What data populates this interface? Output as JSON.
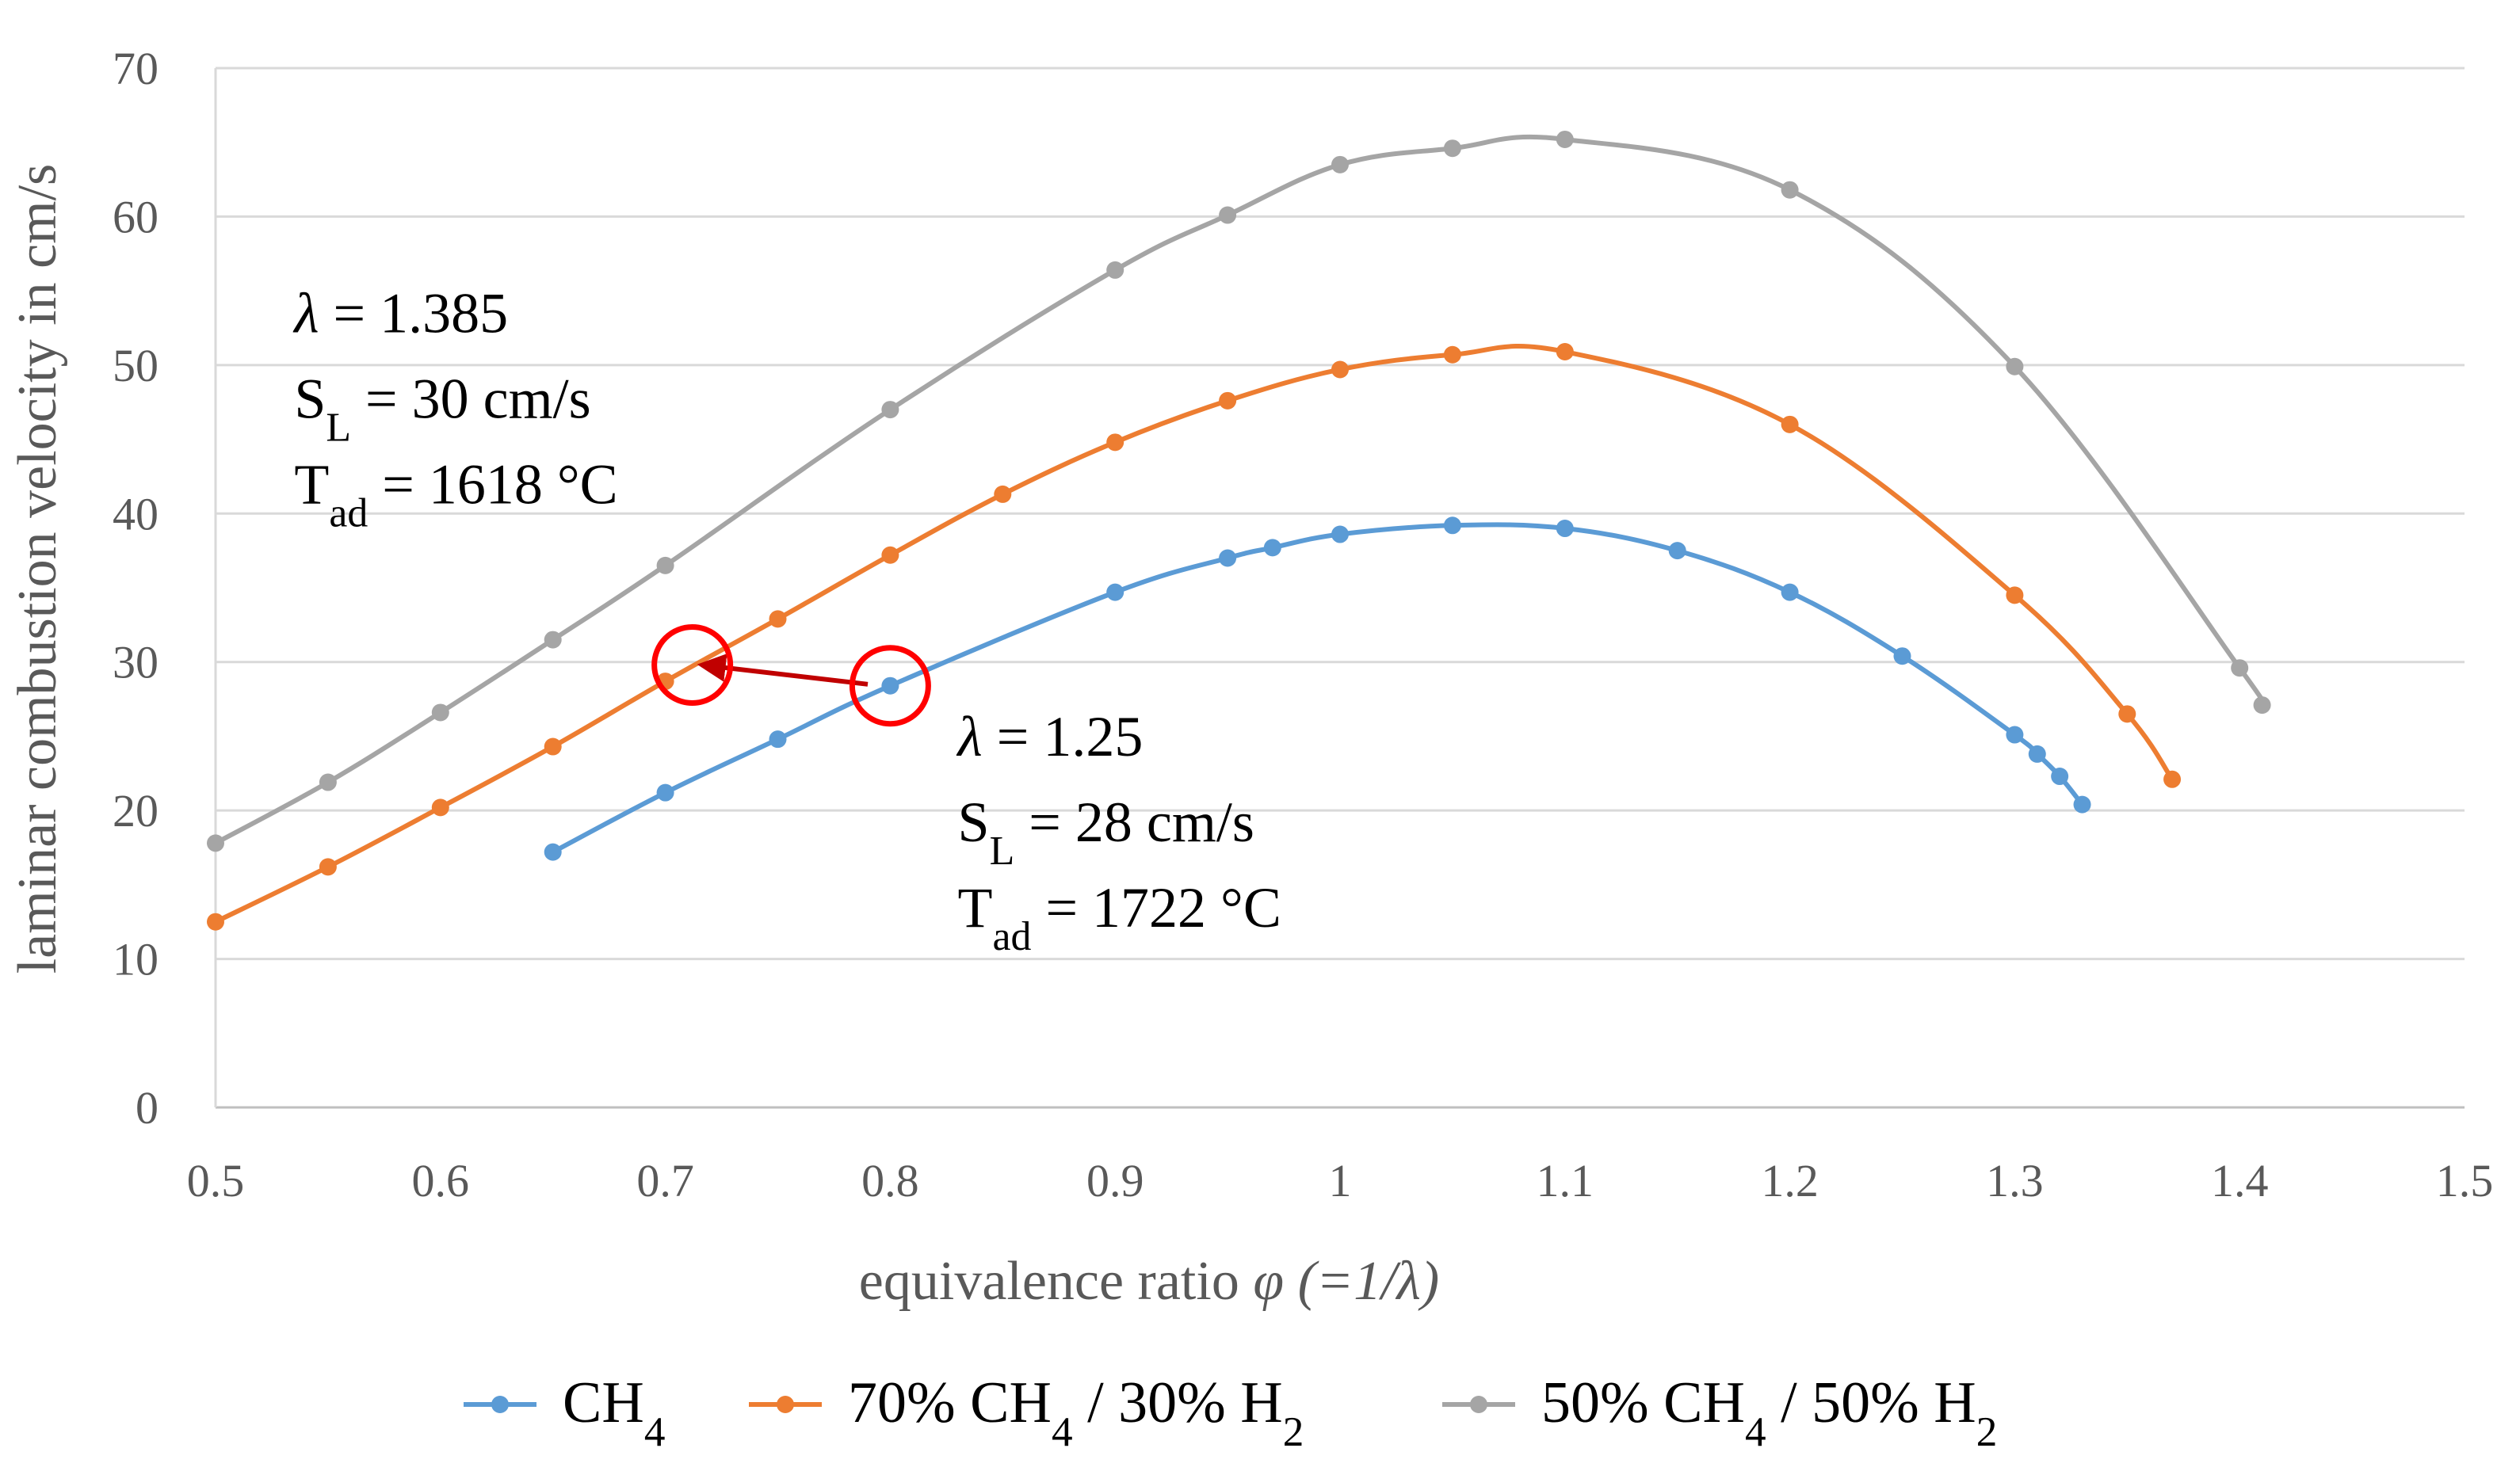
{
  "chart_data": {
    "type": "line",
    "title": "",
    "xlabel": "equivalence ratio φ (=1/λ)",
    "xlabel_main": "equivalence ratio ",
    "xlabel_phi": "φ",
    "xlabel_suffix": " (=1/λ)",
    "ylabel": "laminar combustion velocity  in cm/s",
    "xlim": [
      0.5,
      1.5
    ],
    "ylim": [
      0,
      70
    ],
    "xticks": [
      "0.5",
      "0.6",
      "0.7",
      "0.8",
      "0.9",
      "1",
      "1.1",
      "1.2",
      "1.3",
      "1.4",
      "1.5"
    ],
    "yticks": [
      "0",
      "10",
      "20",
      "30",
      "40",
      "50",
      "60",
      "70"
    ],
    "grid": "horizontal",
    "legend_position": "bottom",
    "series": [
      {
        "name": "CH4",
        "legend_main": "CH",
        "legend_parts": [
          {
            "t": "CH"
          },
          {
            "t": "4",
            "sub": true
          }
        ],
        "color": "#5B9BD5",
        "x": [
          0.65,
          0.7,
          0.75,
          0.8,
          0.9,
          0.95,
          0.97,
          1.0,
          1.05,
          1.1,
          1.15,
          1.2,
          1.25,
          1.3,
          1.31,
          1.32,
          1.33
        ],
        "y": [
          17.2,
          21.2,
          24.8,
          28.4,
          34.7,
          37.0,
          37.7,
          38.6,
          39.2,
          39.0,
          37.5,
          34.7,
          30.4,
          25.1,
          23.8,
          22.3,
          20.4
        ]
      },
      {
        "name": "70% CH4 / 30% H2",
        "legend_main": "70% CH",
        "legend_parts": [
          {
            "t": "70% CH"
          },
          {
            "t": "4",
            "sub": true
          },
          {
            "t": " / 30% H"
          },
          {
            "t": "2",
            "sub": true
          }
        ],
        "color": "#ED7D31",
        "x": [
          0.5,
          0.55,
          0.6,
          0.65,
          0.7,
          0.75,
          0.8,
          0.85,
          0.9,
          0.95,
          1.0,
          1.05,
          1.1,
          1.2,
          1.3,
          1.35,
          1.37
        ],
        "y": [
          12.5,
          16.2,
          20.2,
          24.3,
          28.7,
          32.9,
          37.2,
          41.3,
          44.8,
          47.6,
          49.7,
          50.7,
          50.9,
          46.0,
          34.5,
          26.5,
          22.1
        ]
      },
      {
        "name": "50% CH4 / 50% H2",
        "legend_main": "50% CH",
        "legend_parts": [
          {
            "t": "50% CH"
          },
          {
            "t": "4",
            "sub": true
          },
          {
            "t": " / 50% H"
          },
          {
            "t": "2",
            "sub": true
          }
        ],
        "color": "#A5A5A5",
        "x": [
          0.5,
          0.55,
          0.6,
          0.65,
          0.7,
          0.8,
          0.9,
          0.95,
          1.0,
          1.05,
          1.1,
          1.2,
          1.3,
          1.4,
          1.41
        ],
        "y": [
          17.8,
          21.9,
          26.6,
          31.5,
          36.5,
          47.0,
          56.4,
          60.1,
          63.5,
          64.6,
          65.2,
          61.8,
          49.9,
          29.6,
          27.1
        ]
      }
    ],
    "annotations": [
      {
        "lines": [
          [
            {
              "t": "λ",
              "i": true
            },
            {
              "t": " = 1.385"
            }
          ],
          [
            {
              "t": "S"
            },
            {
              "t": "L",
              "sub": true
            },
            {
              "t": " = 30 cm/s"
            }
          ],
          [
            {
              "t": "T"
            },
            {
              "t": "ad",
              "sub": true
            },
            {
              "t": " = 1618 °C"
            }
          ]
        ],
        "anchor": [
          0.535,
          52.2
        ]
      },
      {
        "lines": [
          [
            {
              "t": "λ",
              "i": true
            },
            {
              "t": " = 1.25"
            }
          ],
          [
            {
              "t": "S"
            },
            {
              "t": "L",
              "sub": true
            },
            {
              "t": " = 28 cm/s"
            }
          ],
          [
            {
              "t": "T"
            },
            {
              "t": "ad",
              "sub": true
            },
            {
              "t": " = 1722 °C"
            }
          ]
        ],
        "anchor": [
          0.83,
          23.7
        ]
      }
    ],
    "highlight_circles": [
      {
        "x": 0.712,
        "y": 29.8,
        "color": "#FF0000"
      },
      {
        "x": 0.8,
        "y": 28.4,
        "color": "#FF0000"
      }
    ],
    "arrow": {
      "from": [
        0.79,
        28.5
      ],
      "to": [
        0.712,
        29.8
      ],
      "color": "#C00000"
    }
  }
}
